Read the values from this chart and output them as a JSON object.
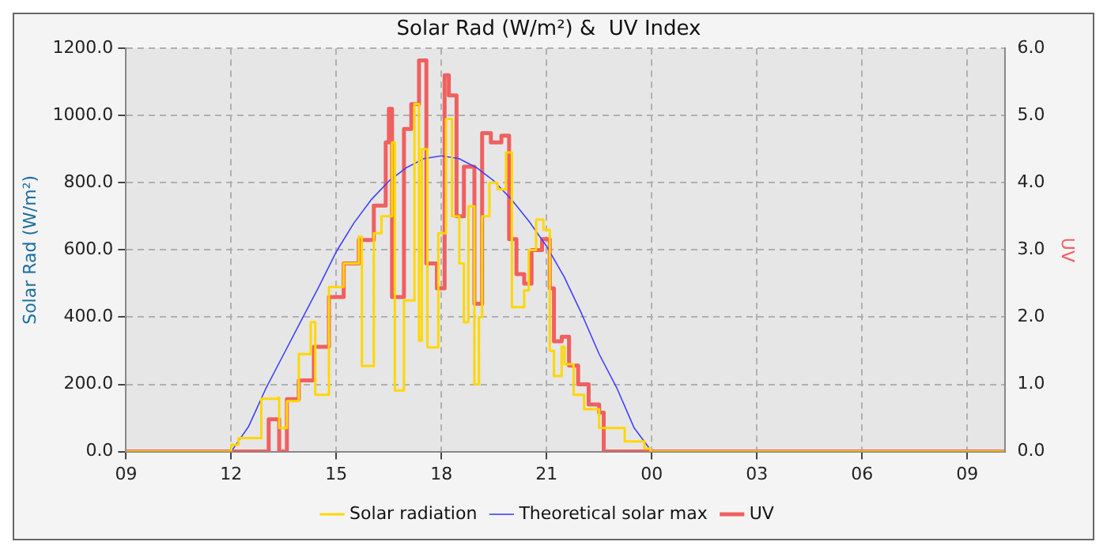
{
  "chart_data": {
    "type": "line",
    "title": "Solar Rad (W/m²) &  UV Index",
    "ylabel": "Solar Rad (W/m²)",
    "y2label": "UV",
    "xlim": [
      9,
      34.07
    ],
    "xticks": [
      {
        "value": 9,
        "label": "09"
      },
      {
        "value": 12,
        "label": "12"
      },
      {
        "value": 15,
        "label": "15"
      },
      {
        "value": 18,
        "label": "18"
      },
      {
        "value": 21,
        "label": "21"
      },
      {
        "value": 24,
        "label": "00"
      },
      {
        "value": 27,
        "label": "03"
      },
      {
        "value": 30,
        "label": "06"
      },
      {
        "value": 33,
        "label": "09"
      }
    ],
    "ylim": [
      0,
      1200
    ],
    "yticks": [
      {
        "value": 0,
        "label": "0.0"
      },
      {
        "value": 200,
        "label": "200.0"
      },
      {
        "value": 400,
        "label": "400.0"
      },
      {
        "value": 600,
        "label": "600.0"
      },
      {
        "value": 800,
        "label": "800.0"
      },
      {
        "value": 1000,
        "label": "1000.0"
      },
      {
        "value": 1200,
        "label": "1200.0"
      }
    ],
    "y2lim": [
      0,
      6
    ],
    "y2ticks": [
      {
        "value": 0,
        "label": "0.0"
      },
      {
        "value": 1,
        "label": "1.0"
      },
      {
        "value": 2,
        "label": "2.0"
      },
      {
        "value": 3,
        "label": "3.0"
      },
      {
        "value": 4,
        "label": "4.0"
      },
      {
        "value": 5,
        "label": "5.0"
      },
      {
        "value": 6,
        "label": "6.0"
      }
    ],
    "grid": true,
    "legend": "bottom",
    "line_style": "solid",
    "marker": "none",
    "series": [
      {
        "name": "Solar radiation",
        "type": "step",
        "color": "#ffd700",
        "x": [
          9,
          11.79,
          12.0,
          12.21,
          12.86,
          13.33,
          13.37,
          13.59,
          13.93,
          14.27,
          14.4,
          14.79,
          15.21,
          15.64,
          15.73,
          16.07,
          16.29,
          16.59,
          16.67,
          16.93,
          17.23,
          17.36,
          17.44,
          17.6,
          17.91,
          18.13,
          18.3,
          18.51,
          18.64,
          18.77,
          18.94,
          19.07,
          19.16,
          19.37,
          19.6,
          19.84,
          20.01,
          20.36,
          20.49,
          20.7,
          20.91,
          21.09,
          21.21,
          21.43,
          21.51,
          21.77,
          22.07,
          22.5,
          22.93,
          23.23,
          23.79,
          23.96,
          34.07
        ],
        "values": [
          0,
          0,
          20,
          40,
          157,
          160,
          70,
          150,
          290,
          385,
          169,
          490,
          560,
          640,
          255,
          650,
          700,
          920,
          182,
          450,
          1035,
          330,
          900,
          310,
          650,
          990,
          700,
          560,
          385,
          730,
          200,
          400,
          700,
          800,
          780,
          890,
          430,
          480,
          600,
          690,
          660,
          300,
          225,
          312,
          260,
          169,
          126,
          70,
          70,
          30,
          9,
          0,
          0
        ]
      },
      {
        "name": "Theoretical solar max",
        "color": "#4040ff",
        "x": [
          9,
          12.0,
          12.5,
          13,
          13.5,
          14,
          14.5,
          15,
          15.5,
          16,
          16.5,
          17,
          17.5,
          18,
          18.5,
          19,
          19.5,
          20,
          20.5,
          21,
          21.5,
          22,
          22.5,
          23,
          23.5,
          24,
          34.07
        ],
        "values": [
          0,
          0,
          75,
          190,
          290,
          390,
          490,
          595,
          680,
          750,
          805,
          845,
          872,
          880,
          872,
          845,
          805,
          750,
          685,
          611,
          520,
          410,
          290,
          190,
          70,
          0,
          0
        ]
      },
      {
        "name": "UV",
        "type": "step",
        "axis": "y2",
        "color": "#f06060",
        "x": [
          9,
          13.07,
          13.37,
          13.59,
          13.93,
          14.36,
          14.79,
          15.21,
          15.64,
          16.07,
          16.41,
          16.5,
          16.59,
          16.93,
          17.14,
          17.36,
          17.57,
          17.87,
          18.09,
          18.21,
          18.43,
          18.64,
          18.94,
          19.16,
          19.41,
          19.71,
          19.93,
          20.14,
          20.36,
          20.57,
          20.87,
          21.09,
          21.21,
          21.43,
          21.64,
          21.9,
          22.2,
          22.5,
          22.63,
          34.07
        ],
        "values": [
          0,
          0.48,
          0,
          0.78,
          1.06,
          1.56,
          2.3,
          2.8,
          3.15,
          3.66,
          4.6,
          5.1,
          2.3,
          4.8,
          5.17,
          5.82,
          2.8,
          2.43,
          5.6,
          5.3,
          3.5,
          4.24,
          2.2,
          4.74,
          4.6,
          4.7,
          3.16,
          2.64,
          2.5,
          3.0,
          3.16,
          2.43,
          1.64,
          1.71,
          1.28,
          1.0,
          0.7,
          0.58,
          0,
          0
        ]
      }
    ]
  }
}
